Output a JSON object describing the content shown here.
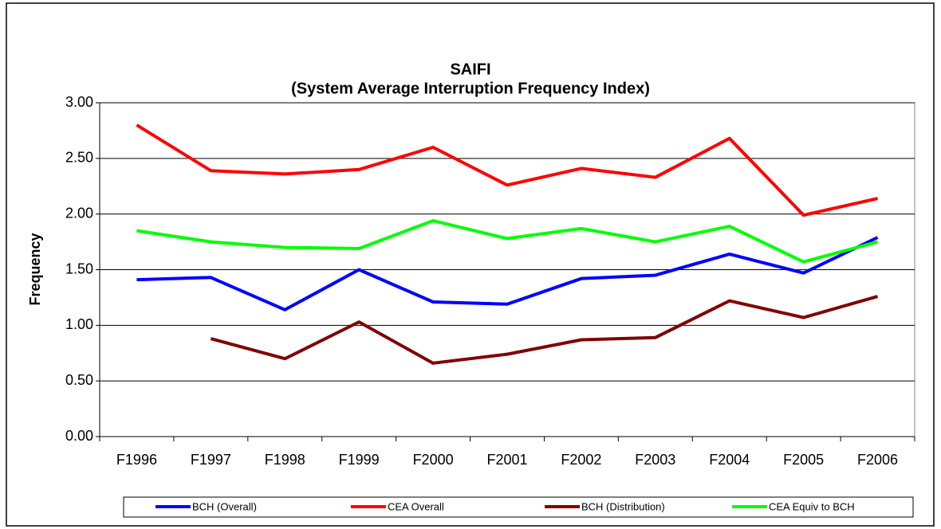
{
  "chart_data": {
    "type": "line",
    "title": "SAIFI",
    "subtitle": "(System Average Interruption Frequency Index)",
    "y_label": "Frequency",
    "categories": [
      "F1996",
      "F1997",
      "F1998",
      "F1999",
      "F2000",
      "F2001",
      "F2002",
      "F2003",
      "F2004",
      "F2005",
      "F2006"
    ],
    "series": [
      {
        "name": "BCH (Overall)",
        "color": "#0000ff",
        "values": [
          1.41,
          1.43,
          1.14,
          1.5,
          1.21,
          1.19,
          1.42,
          1.45,
          1.64,
          1.47,
          1.79
        ]
      },
      {
        "name": "CEA Overall",
        "color": "#ff0000",
        "values": [
          2.8,
          2.39,
          2.36,
          2.4,
          2.6,
          2.26,
          2.41,
          2.33,
          2.68,
          1.99,
          2.14
        ]
      },
      {
        "name": "BCH (Distribution)",
        "color": "#800000",
        "values": [
          null,
          0.88,
          0.7,
          1.03,
          0.66,
          0.74,
          0.87,
          0.89,
          1.22,
          1.07,
          1.26
        ]
      },
      {
        "name": "CEA Equiv to BCH",
        "color": "#00ff00",
        "values": [
          1.85,
          1.75,
          1.7,
          1.69,
          1.94,
          1.78,
          1.87,
          1.75,
          1.89,
          1.57,
          1.75
        ]
      }
    ],
    "ylim": [
      0,
      3
    ],
    "yticks": [
      {
        "value": 0,
        "label": "0.00"
      },
      {
        "value": 0.5,
        "label": "0.50"
      },
      {
        "value": 1,
        "label": "1.00"
      },
      {
        "value": 1.5,
        "label": "1.50"
      },
      {
        "value": 2,
        "label": "2.00"
      },
      {
        "value": 2.5,
        "label": "2.50"
      },
      {
        "value": 3,
        "label": "3.00"
      }
    ],
    "grid": true,
    "legend": "bottom"
  }
}
